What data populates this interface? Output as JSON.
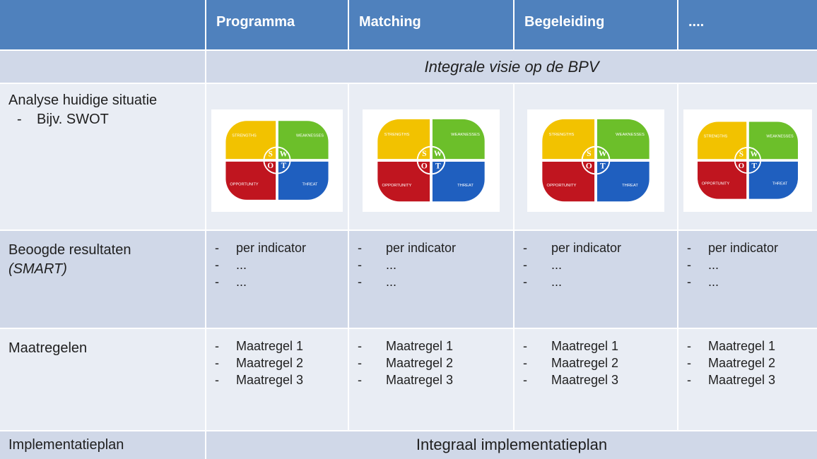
{
  "table": {
    "columns": [
      "Programma",
      "Matching",
      "Begeleiding",
      "...."
    ],
    "vision": "Integrale visie op de BPV",
    "analysis": {
      "label": "Analyse huidige situatie",
      "bullet": "Bijv. SWOT"
    },
    "swot": {
      "letters": [
        "S",
        "W",
        "O",
        "T"
      ],
      "quadrants": [
        "STRENGTHS",
        "WEAKNESSES",
        "OPPORTUNITY",
        "THREAT"
      ]
    },
    "results": {
      "label": "Beoogde resultaten",
      "note": "(SMART)",
      "items": [
        "per indicator",
        "...",
        "..."
      ]
    },
    "measures": {
      "label": "Maatregelen",
      "items": [
        "Maatregel 1",
        "Maatregel 2",
        "Maatregel 3"
      ]
    },
    "implementation": {
      "label": "Implementatieplan",
      "plan": "Integraal implementatieplan"
    }
  }
}
